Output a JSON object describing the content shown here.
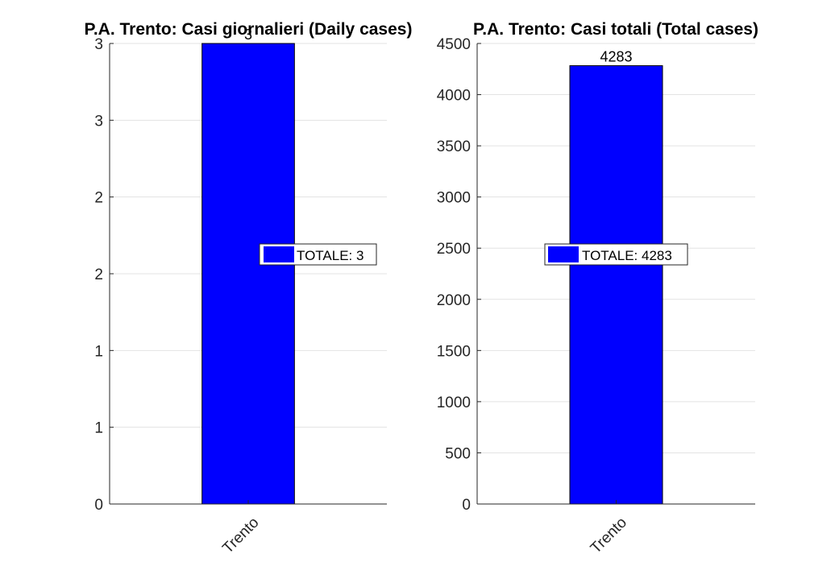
{
  "chart_data": [
    {
      "type": "bar",
      "title": "P.A. Trento: Casi giornalieri (Daily cases)",
      "categories": [
        "Trento"
      ],
      "values": [
        3
      ],
      "data_labels": [
        "3"
      ],
      "yticks": [
        0,
        0.5,
        1,
        1.5,
        2,
        2.5,
        3
      ],
      "ytick_labels": [
        "0",
        "1",
        "1",
        "2",
        "2",
        "3",
        "3"
      ],
      "ylim": [
        0,
        3
      ],
      "grid": "horizontal",
      "legend": {
        "entries": [
          "TOTALE: 3"
        ],
        "placement": "center-right"
      },
      "bar_color": "#0000FF"
    },
    {
      "type": "bar",
      "title": "P.A. Trento: Casi totali (Total cases)",
      "categories": [
        "Trento"
      ],
      "values": [
        4283
      ],
      "data_labels": [
        "4283"
      ],
      "yticks": [
        0,
        500,
        1000,
        1500,
        2000,
        2500,
        3000,
        3500,
        4000,
        4500
      ],
      "ytick_labels": [
        "0",
        "500",
        "1000",
        "1500",
        "2000",
        "2500",
        "3000",
        "3500",
        "4000",
        "4500"
      ],
      "ylim": [
        0,
        4500
      ],
      "grid": "horizontal",
      "legend": {
        "entries": [
          "TOTALE: 4283"
        ],
        "placement": "center"
      },
      "bar_color": "#0000FF"
    }
  ]
}
